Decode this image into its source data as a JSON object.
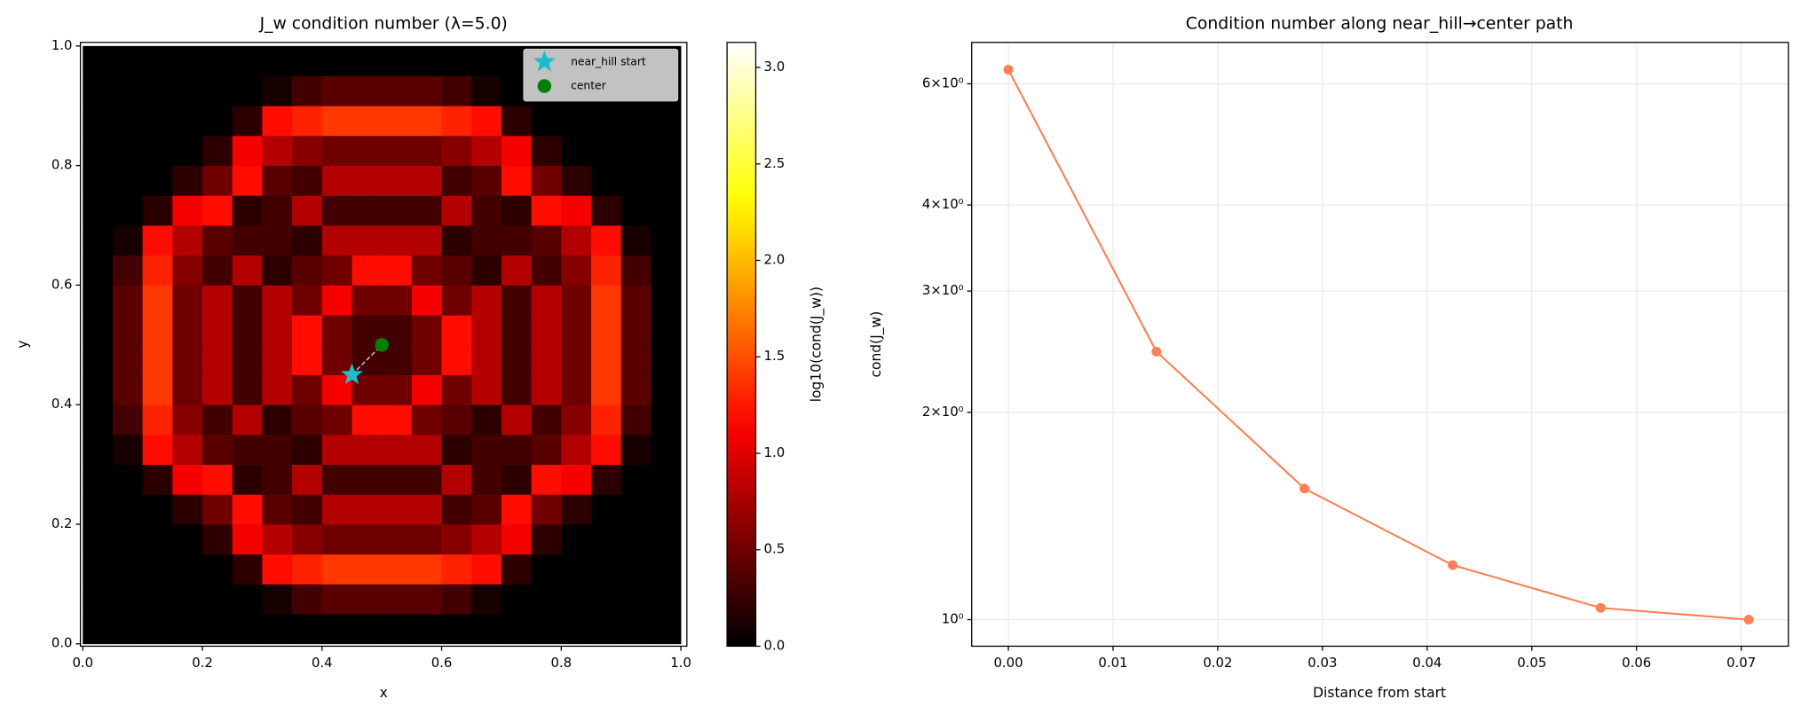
{
  "chart_data": [
    {
      "type": "heatmap",
      "title": "J_w condition number (λ=5.0)",
      "xlabel": "x",
      "ylabel": "y",
      "colormap": "hot",
      "clim": [
        0,
        3.13
      ],
      "colorbar_label": "log10(cond(J_w))",
      "colorbar_ticks": [
        {
          "value": 0,
          "label": "0.0"
        },
        0.5,
        {
          "value": 1,
          "label": "1.0"
        },
        1.5,
        {
          "value": 2,
          "label": "2.0"
        },
        2.5,
        {
          "value": 3,
          "label": "3.0"
        }
      ],
      "extent": [
        0,
        1,
        0,
        1
      ],
      "xlim": [
        -0.004,
        1.01
      ],
      "ylim": [
        -0.004,
        1.006
      ],
      "xticks": [
        {
          "value": 0,
          "label": "0.0"
        },
        0.2,
        0.4,
        0.6,
        0.8,
        {
          "value": 1,
          "label": "1.0"
        }
      ],
      "yticks": [
        {
          "value": 0,
          "label": "0.0"
        },
        0.2,
        0.4,
        0.6,
        0.8,
        {
          "value": 1,
          "label": "1.0"
        }
      ],
      "legend": "upper right",
      "z": [
        [
          0,
          0,
          0,
          0,
          0,
          0,
          0,
          0,
          0,
          0,
          0,
          0,
          0,
          0,
          0,
          0,
          0,
          0,
          0,
          0
        ],
        [
          0,
          0,
          0,
          0,
          0,
          0,
          0.1,
          0.3,
          0.4,
          0.4,
          0.4,
          0.4,
          0.3,
          0.1,
          0,
          0,
          0,
          0,
          0,
          0
        ],
        [
          0,
          0,
          0,
          0,
          0,
          0.2,
          1.2,
          1.3,
          1.4,
          1.4,
          1.4,
          1.4,
          1.3,
          1.2,
          0.2,
          0,
          0,
          0,
          0,
          0
        ],
        [
          0,
          0,
          0,
          0,
          0.2,
          1.1,
          0.8,
          0.6,
          0.5,
          0.5,
          0.5,
          0.5,
          0.6,
          0.8,
          1.1,
          0.2,
          0,
          0,
          0,
          0
        ],
        [
          0,
          0,
          0,
          0.2,
          0.5,
          1.2,
          0.4,
          0.3,
          0.8,
          0.8,
          0.8,
          0.8,
          0.3,
          0.4,
          1.2,
          0.5,
          0.2,
          0,
          0,
          0
        ],
        [
          0,
          0,
          0.2,
          1.1,
          1.2,
          0.2,
          0.3,
          0.8,
          0.3,
          0.3,
          0.3,
          0.3,
          0.8,
          0.3,
          0.2,
          1.2,
          1.1,
          0.2,
          0,
          0
        ],
        [
          0,
          0.1,
          1.2,
          0.8,
          0.4,
          0.3,
          0.3,
          0.2,
          0.8,
          0.8,
          0.8,
          0.8,
          0.2,
          0.3,
          0.3,
          0.4,
          0.8,
          1.2,
          0.1,
          0
        ],
        [
          0,
          0.3,
          1.3,
          0.6,
          0.3,
          0.8,
          0.2,
          0.4,
          0.5,
          1.2,
          1.2,
          0.5,
          0.4,
          0.2,
          0.8,
          0.3,
          0.6,
          1.3,
          0.3,
          0
        ],
        [
          0,
          0.4,
          1.4,
          0.5,
          0.8,
          0.3,
          0.8,
          0.5,
          1.1,
          0.5,
          0.5,
          1.1,
          0.5,
          0.8,
          0.3,
          0.8,
          0.5,
          1.4,
          0.4,
          0
        ],
        [
          0,
          0.4,
          1.4,
          0.5,
          0.8,
          0.3,
          0.8,
          1.2,
          0.5,
          0.3,
          0.3,
          0.5,
          1.2,
          0.8,
          0.3,
          0.8,
          0.5,
          1.4,
          0.4,
          0
        ],
        [
          0,
          0.4,
          1.4,
          0.5,
          0.8,
          0.3,
          0.8,
          1.2,
          0.5,
          0.3,
          0.3,
          0.5,
          1.2,
          0.8,
          0.3,
          0.8,
          0.5,
          1.4,
          0.4,
          0
        ],
        [
          0,
          0.4,
          1.4,
          0.5,
          0.8,
          0.3,
          0.8,
          0.5,
          1.1,
          0.5,
          0.5,
          1.1,
          0.5,
          0.8,
          0.3,
          0.8,
          0.5,
          1.4,
          0.4,
          0
        ],
        [
          0,
          0.3,
          1.3,
          0.6,
          0.3,
          0.8,
          0.2,
          0.4,
          0.5,
          1.2,
          1.2,
          0.5,
          0.4,
          0.2,
          0.8,
          0.3,
          0.6,
          1.3,
          0.3,
          0
        ],
        [
          0,
          0.1,
          1.2,
          0.8,
          0.4,
          0.3,
          0.3,
          0.2,
          0.8,
          0.8,
          0.8,
          0.8,
          0.2,
          0.3,
          0.3,
          0.4,
          0.8,
          1.2,
          0.1,
          0
        ],
        [
          0,
          0,
          0.2,
          1.1,
          1.2,
          0.2,
          0.3,
          0.8,
          0.3,
          0.3,
          0.3,
          0.3,
          0.8,
          0.3,
          0.2,
          1.2,
          1.1,
          0.2,
          0,
          0
        ],
        [
          0,
          0,
          0,
          0.2,
          0.5,
          1.2,
          0.4,
          0.3,
          0.8,
          0.8,
          0.8,
          0.8,
          0.3,
          0.4,
          1.2,
          0.5,
          0.2,
          0,
          0,
          0
        ],
        [
          0,
          0,
          0,
          0,
          0.2,
          1.1,
          0.8,
          0.6,
          0.5,
          0.5,
          0.5,
          0.5,
          0.6,
          0.8,
          1.1,
          0.2,
          0,
          0,
          0,
          0
        ],
        [
          0,
          0,
          0,
          0,
          0,
          0.2,
          1.2,
          1.3,
          1.4,
          1.4,
          1.4,
          1.4,
          1.3,
          1.2,
          0.2,
          0,
          0,
          0,
          0,
          0
        ],
        [
          0,
          0,
          0,
          0,
          0,
          0,
          0.1,
          0.3,
          0.4,
          0.4,
          0.4,
          0.4,
          0.3,
          0.1,
          0,
          0,
          0,
          0,
          0,
          0
        ],
        [
          0,
          0,
          0,
          0,
          0,
          0,
          0,
          0,
          0,
          0,
          0,
          0,
          0,
          0,
          0,
          0,
          0,
          0,
          0,
          0
        ]
      ],
      "series": [
        {
          "name": "near_hill start",
          "color": "#17becf",
          "marker": "star",
          "x": [
            0.45
          ],
          "y": [
            0.45
          ]
        },
        {
          "name": "center",
          "color": "#008000",
          "marker": "circle",
          "x": [
            0.5
          ],
          "y": [
            0.5
          ]
        }
      ]
    },
    {
      "type": "line",
      "title": "Condition number along near_hill→center path",
      "xlabel": "Distance from start",
      "ylabel": "cond(J_w)",
      "x": [
        0,
        0.01414,
        0.02828,
        0.04243,
        0.05657,
        0.07071
      ],
      "series": [
        {
          "color": "#ff7f50",
          "values": [
            6.29,
            2.45,
            1.55,
            1.2,
            1.04,
            1.0
          ]
        }
      ],
      "yscale": "log",
      "grid": true,
      "xlim": [
        -0.0035,
        0.0745
      ],
      "ylim": [
        0.915,
        6.89
      ],
      "xticks": [
        {
          "value": 0,
          "label": "0.00"
        },
        0.01,
        0.02,
        0.03,
        0.04,
        0.05,
        0.06,
        0.07
      ],
      "yticks": [
        {
          "value": 1,
          "label": "10⁰"
        },
        {
          "value": 2,
          "label": "2×10⁰"
        },
        {
          "value": 3,
          "label": "3×10⁰"
        },
        {
          "value": 4,
          "label": "4×10⁰"
        },
        {
          "value": 6,
          "label": "6×10⁰"
        }
      ]
    }
  ]
}
